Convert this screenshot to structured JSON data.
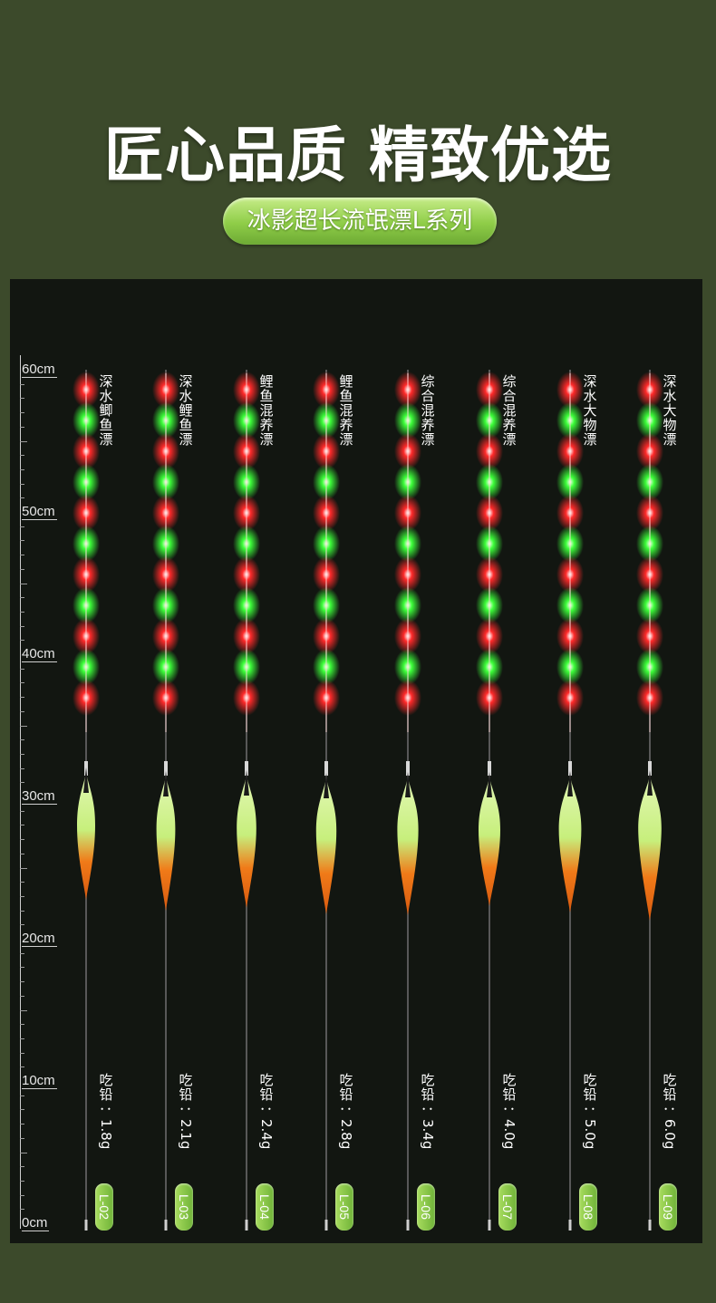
{
  "headline": "匠心品质 精致优选",
  "series_title": "冰影超长流氓漂L系列",
  "ruler": {
    "labels": [
      "60cm",
      "50cm",
      "40cm",
      "30cm",
      "20cm",
      "10cm",
      "0cm"
    ]
  },
  "weight_prefix": "吃铅",
  "colors": {
    "background": "#3c4a2b",
    "panel": "#121611",
    "pill_green": "#8fcd48",
    "bead_red": "#ff2a2a",
    "bead_green": "#3dff3a",
    "body_top": "#e2f7b4",
    "body_bottom": "#f07a18"
  },
  "floats": [
    {
      "name": "深水鲫鱼漂",
      "weight": "：1.8g",
      "code": "L-02"
    },
    {
      "name": "深水鲤鱼漂",
      "weight": "：2.1g",
      "code": "L-03"
    },
    {
      "name": "鲤鱼混养漂",
      "weight": "：2.4g",
      "code": "L-04"
    },
    {
      "name": "鲤鱼混养漂",
      "weight": "：2.8g",
      "code": "L-05"
    },
    {
      "name": "综合混养漂",
      "weight": "：3.4g",
      "code": "L-06"
    },
    {
      "name": "综合混养漂",
      "weight": "：4.0g",
      "code": "L-07"
    },
    {
      "name": "深水大物漂",
      "weight": "：5.0g",
      "code": "L-08"
    },
    {
      "name": "深水大物漂",
      "weight": "：6.0g",
      "code": "L-09"
    }
  ]
}
